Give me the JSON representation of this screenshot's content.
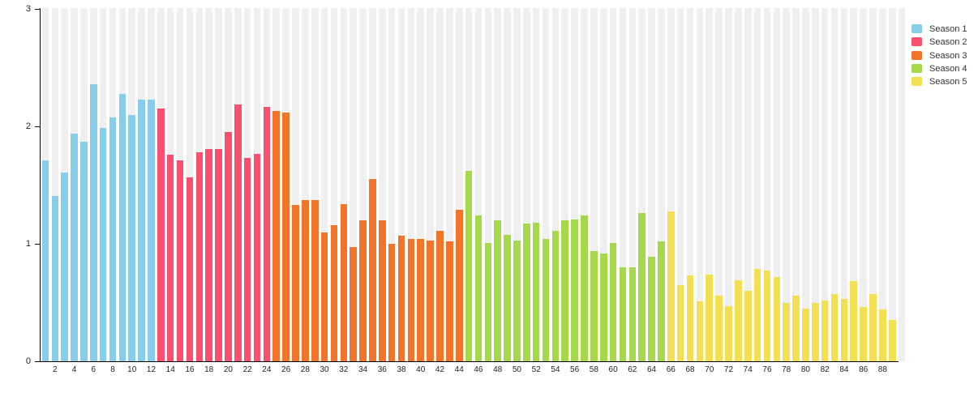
{
  "chart_data": {
    "type": "bar",
    "title": "",
    "xlabel": "",
    "ylabel": "",
    "ylim": [
      0,
      3
    ],
    "y_ticks": [
      "0",
      "1",
      "2",
      "3"
    ],
    "x_tick_labels": [
      "2",
      "4",
      "6",
      "8",
      "10",
      "12",
      "14",
      "16",
      "18",
      "20",
      "22",
      "24",
      "26",
      "28",
      "30",
      "32",
      "34",
      "36",
      "38",
      "40",
      "42",
      "44",
      "46",
      "48",
      "50",
      "52",
      "54",
      "56",
      "58",
      "60",
      "62",
      "64",
      "66",
      "68",
      "70",
      "72",
      "74",
      "76",
      "78",
      "80",
      "82",
      "84",
      "86",
      "88"
    ],
    "grid": "vertical-stripes",
    "stripe_color": "#efefef",
    "legend_position": "top-right",
    "total_slots": 90,
    "seasons": [
      {
        "name": "Season 1",
        "color": "#87CEEB",
        "start_episode": 1,
        "values": [
          1.71,
          1.41,
          1.61,
          1.94,
          1.87,
          2.36,
          1.99,
          2.08,
          2.28,
          2.1,
          2.23,
          2.23
        ]
      },
      {
        "name": "Season 2",
        "color": "#F8506E",
        "start_episode": 13,
        "values": [
          2.15,
          1.76,
          1.71,
          1.57,
          1.78,
          1.81,
          1.81,
          1.95,
          2.19,
          1.73,
          1.77,
          2.17
        ]
      },
      {
        "name": "Season 3",
        "color": "#F0752B",
        "start_episode": 25,
        "values": [
          2.13,
          2.12,
          1.33,
          1.37,
          1.37,
          1.1,
          1.16,
          1.34,
          0.97,
          1.2,
          1.55,
          1.2,
          1.0,
          1.07,
          1.04,
          1.04,
          1.03,
          1.11,
          1.02,
          1.29
        ]
      },
      {
        "name": "Season 4",
        "color": "#A6D84C",
        "start_episode": 45,
        "values": [
          1.62,
          1.24,
          1.01,
          1.2,
          1.08,
          1.03,
          1.17,
          1.18,
          1.04,
          1.11,
          1.2,
          1.21,
          1.24,
          0.94,
          0.92,
          1.01,
          0.8,
          0.8,
          1.26,
          0.89,
          1.02
        ]
      },
      {
        "name": "Season 5",
        "color": "#F2DF53",
        "start_episode": 66,
        "values": [
          1.28,
          0.65,
          0.73,
          0.51,
          0.74,
          0.56,
          0.47,
          0.69,
          0.6,
          0.79,
          0.77,
          0.72,
          0.5,
          0.56,
          0.45,
          0.5,
          0.52,
          0.57,
          0.53,
          0.68,
          0.46,
          0.57,
          0.44,
          0.35
        ]
      }
    ]
  }
}
